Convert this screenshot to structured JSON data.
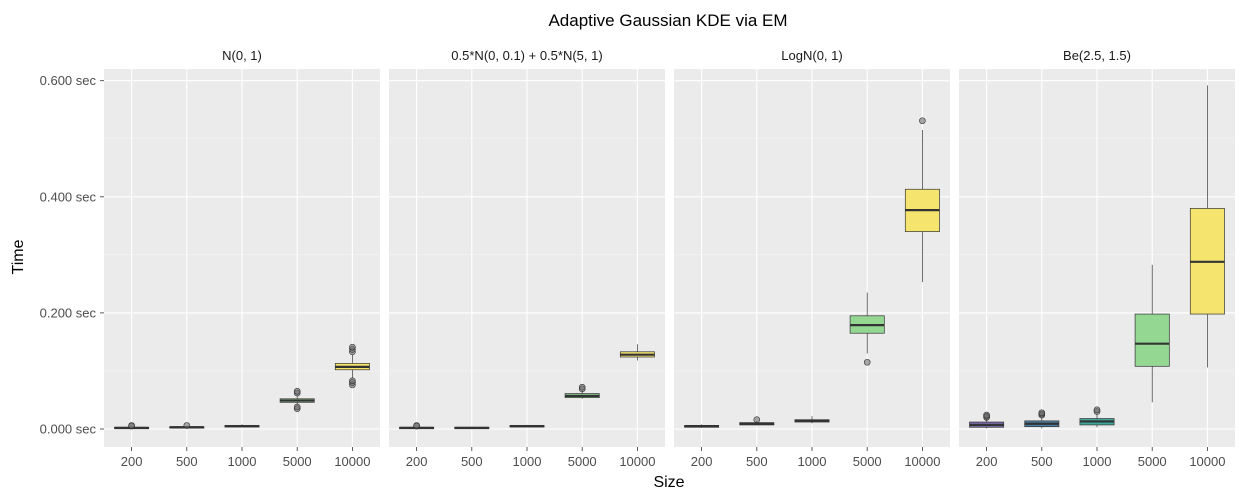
{
  "chart_data": {
    "type": "boxplot",
    "title": "Adaptive Gaussian KDE via EM",
    "xlabel": "Size",
    "ylabel": "Time",
    "categories": [
      "200",
      "500",
      "1000",
      "5000",
      "10000"
    ],
    "y_ticks": [
      {
        "value": 0.0,
        "label": "0.000 sec"
      },
      {
        "value": 0.2,
        "label": "0.200 sec"
      },
      {
        "value": 0.4,
        "label": "0.400 sec"
      },
      {
        "value": 0.6,
        "label": "0.600 sec"
      }
    ],
    "ylim": [
      -0.03,
      0.62
    ],
    "grid": true,
    "fill_colors": [
      "#7b6ca8",
      "#4a7fa3",
      "#3ea79a",
      "#93d793",
      "#f5e56f"
    ],
    "panels": [
      {
        "name": "N(0, 1)",
        "boxes": [
          {
            "category": "200",
            "min": 0.0,
            "q1": 0.001,
            "median": 0.002,
            "q3": 0.003,
            "max": 0.004,
            "outliers": [
              0.005,
              0.006
            ]
          },
          {
            "category": "500",
            "min": 0.001,
            "q1": 0.002,
            "median": 0.003,
            "q3": 0.004,
            "max": 0.005,
            "outliers": [
              0.006
            ]
          },
          {
            "category": "1000",
            "min": 0.003,
            "q1": 0.004,
            "median": 0.005,
            "q3": 0.006,
            "max": 0.008,
            "outliers": []
          },
          {
            "category": "5000",
            "min": 0.042,
            "q1": 0.046,
            "median": 0.049,
            "q3": 0.052,
            "max": 0.058,
            "outliers": [
              0.035,
              0.038,
              0.062,
              0.065
            ]
          },
          {
            "category": "10000",
            "min": 0.088,
            "q1": 0.102,
            "median": 0.107,
            "q3": 0.113,
            "max": 0.128,
            "outliers": [
              0.076,
              0.08,
              0.083,
              0.133,
              0.137,
              0.141
            ]
          }
        ]
      },
      {
        "name": "0.5*N(0, 0.1) + 0.5*N(5, 1)",
        "boxes": [
          {
            "category": "200",
            "min": 0.0,
            "q1": 0.001,
            "median": 0.002,
            "q3": 0.003,
            "max": 0.004,
            "outliers": [
              0.005,
              0.006
            ]
          },
          {
            "category": "500",
            "min": 0.0,
            "q1": 0.001,
            "median": 0.002,
            "q3": 0.003,
            "max": 0.004,
            "outliers": []
          },
          {
            "category": "1000",
            "min": 0.003,
            "q1": 0.004,
            "median": 0.005,
            "q3": 0.006,
            "max": 0.007,
            "outliers": []
          },
          {
            "category": "5000",
            "min": 0.052,
            "q1": 0.054,
            "median": 0.057,
            "q3": 0.061,
            "max": 0.066,
            "outliers": [
              0.069,
              0.072
            ]
          },
          {
            "category": "10000",
            "min": 0.118,
            "q1": 0.124,
            "median": 0.128,
            "q3": 0.133,
            "max": 0.146,
            "outliers": []
          }
        ]
      },
      {
        "name": "LogN(0, 1)",
        "boxes": [
          {
            "category": "200",
            "min": 0.002,
            "q1": 0.003,
            "median": 0.005,
            "q3": 0.006,
            "max": 0.008,
            "outliers": []
          },
          {
            "category": "500",
            "min": 0.006,
            "q1": 0.007,
            "median": 0.009,
            "q3": 0.011,
            "max": 0.014,
            "outliers": [
              0.016
            ]
          },
          {
            "category": "1000",
            "min": 0.01,
            "q1": 0.012,
            "median": 0.014,
            "q3": 0.016,
            "max": 0.022,
            "outliers": []
          },
          {
            "category": "5000",
            "min": 0.13,
            "q1": 0.165,
            "median": 0.179,
            "q3": 0.195,
            "max": 0.235,
            "outliers": [
              0.115
            ]
          },
          {
            "category": "10000",
            "min": 0.253,
            "q1": 0.34,
            "median": 0.377,
            "q3": 0.413,
            "max": 0.515,
            "outliers": [
              0.531
            ]
          }
        ]
      },
      {
        "name": "Be(2.5, 1.5)",
        "boxes": [
          {
            "category": "200",
            "min": 0.001,
            "q1": 0.003,
            "median": 0.007,
            "q3": 0.012,
            "max": 0.018,
            "outliers": [
              0.02,
              0.022,
              0.024
            ]
          },
          {
            "category": "500",
            "min": 0.001,
            "q1": 0.004,
            "median": 0.009,
            "q3": 0.014,
            "max": 0.022,
            "outliers": [
              0.024,
              0.026,
              0.028
            ]
          },
          {
            "category": "1000",
            "min": 0.003,
            "q1": 0.007,
            "median": 0.013,
            "q3": 0.018,
            "max": 0.027,
            "outliers": [
              0.03,
              0.033
            ]
          },
          {
            "category": "5000",
            "min": 0.046,
            "q1": 0.108,
            "median": 0.147,
            "q3": 0.198,
            "max": 0.283,
            "outliers": []
          },
          {
            "category": "10000",
            "min": 0.106,
            "q1": 0.198,
            "median": 0.288,
            "q3": 0.38,
            "max": 0.592,
            "outliers": []
          }
        ]
      }
    ]
  }
}
